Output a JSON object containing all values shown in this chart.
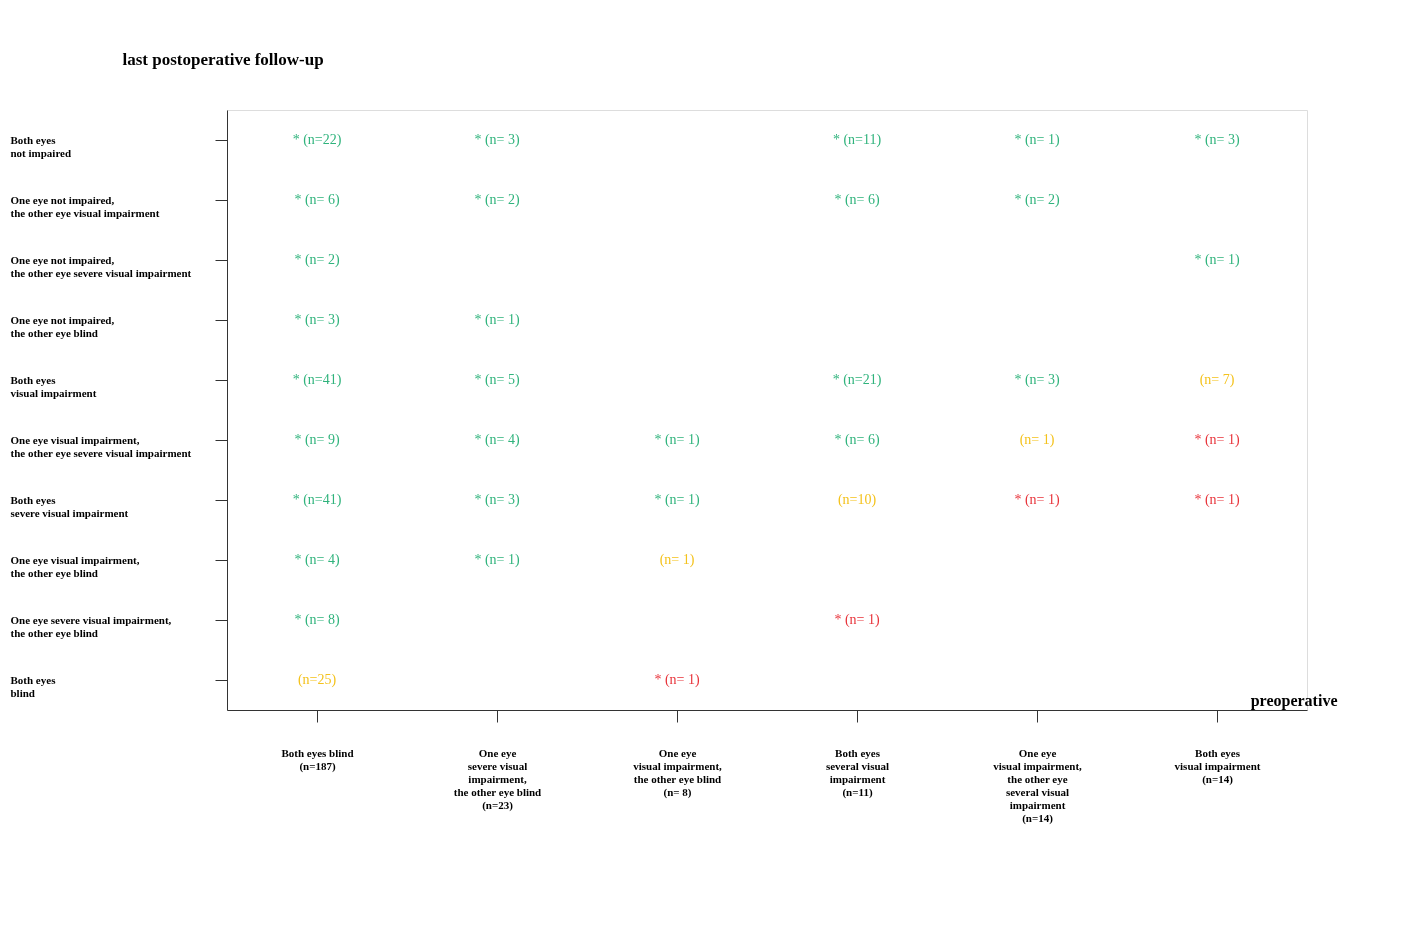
{
  "chart_data": {
    "type": "heatmap",
    "xlabel": "preoperative",
    "ylabel": "last postoperative follow-up",
    "categories": [
      "Both eyes blind\n(n=187)",
      "One eye\nsevere visual\nimpairment,\nthe other eye blind\n(n=23)",
      "One eye\nvisual impairment,\nthe other eye blind\n(n= 8)",
      "Both eyes\nseveral visual\nimpairment\n(n=11)",
      "One eye\nvisual impairment,\nthe other eye\nseveral visual\nimpairment\n(n=14)",
      "Both eyes\nvisual impairment\n(n=14)"
    ],
    "y_categories": [
      "Both eyes\nnot impaired",
      "One eye not impaired,\nthe other eye visual impairment",
      "One eye not impaired,\nthe other eye severe visual impairment",
      "One eye not impaired,\nthe other eye blind",
      "Both eyes\nvisual impairment",
      "One eye visual impairment,\nthe other eye severe visual impairment",
      "Both eyes\nsevere visual impairment",
      "One eye visual impairment,\nthe other eye blind",
      "One eye severe visual impairment,\nthe other eye blind",
      "Both eyes\nblind"
    ],
    "cells": [
      [
        22,
        3,
        null,
        11,
        1,
        3
      ],
      [
        6,
        2,
        null,
        6,
        2,
        null
      ],
      [
        2,
        null,
        null,
        null,
        null,
        1
      ],
      [
        3,
        1,
        null,
        null,
        null,
        null
      ],
      [
        41,
        5,
        null,
        21,
        3,
        7
      ],
      [
        9,
        4,
        1,
        6,
        1,
        1
      ],
      [
        41,
        3,
        1,
        10,
        1,
        1
      ],
      [
        4,
        1,
        1,
        null,
        null,
        null
      ],
      [
        8,
        null,
        null,
        1,
        null,
        null
      ],
      [
        25,
        null,
        1,
        null,
        null,
        null
      ]
    ],
    "cell_labels": [
      [
        "* (n=22)",
        "* (n= 3)",
        null,
        "* (n=11)",
        "* (n= 1)",
        "* (n= 3)"
      ],
      [
        "* (n= 6)",
        "* (n= 2)",
        null,
        "* (n= 6)",
        "* (n= 2)",
        null
      ],
      [
        "* (n= 2)",
        null,
        null,
        null,
        null,
        "* (n= 1)"
      ],
      [
        "* (n= 3)",
        "* (n= 1)",
        null,
        null,
        null,
        null
      ],
      [
        "* (n=41)",
        "* (n= 5)",
        null,
        "* (n=21)",
        "* (n= 3)",
        "(n= 7)"
      ],
      [
        "* (n= 9)",
        "* (n= 4)",
        "* (n= 1)",
        "* (n= 6)",
        "(n= 1)",
        "* (n= 1)"
      ],
      [
        "* (n=41)",
        "* (n= 3)",
        "* (n= 1)",
        "(n=10)",
        "* (n= 1)",
        "* (n= 1)"
      ],
      [
        "* (n= 4)",
        "* (n= 1)",
        "(n= 1)",
        null,
        null,
        null
      ],
      [
        "* (n= 8)",
        null,
        null,
        "* (n= 1)",
        null,
        null
      ],
      [
        "(n=25)",
        null,
        "* (n= 1)",
        null,
        null,
        null
      ]
    ],
    "colors": [
      [
        "#2fb37c",
        "#2fb37c",
        null,
        "#2fb37c",
        "#2fb37c",
        "#2fb37c"
      ],
      [
        "#2fb37c",
        "#2fb37c",
        null,
        "#2fb37c",
        "#2fb37c",
        null
      ],
      [
        "#2fb37c",
        null,
        null,
        null,
        null,
        "#2fb37c"
      ],
      [
        "#2fb37c",
        "#2fb37c",
        null,
        null,
        null,
        null
      ],
      [
        "#2fb37c",
        "#2fb37c",
        null,
        "#2fb37c",
        "#2fb37c",
        "#f4c21c"
      ],
      [
        "#2fb37c",
        "#2fb37c",
        "#2fb37c",
        "#2fb37c",
        "#f4c21c",
        "#e8333a"
      ],
      [
        "#2fb37c",
        "#2fb37c",
        "#2fb37c",
        "#f4c21c",
        "#e8333a",
        "#e8333a"
      ],
      [
        "#2fb37c",
        "#2fb37c",
        "#f4c21c",
        null,
        null,
        null
      ],
      [
        "#2fb37c",
        null,
        null,
        "#e8333a",
        null,
        null
      ],
      [
        "#f4c21c",
        null,
        "#e8333a",
        null,
        null,
        null
      ]
    ],
    "grid": false
  }
}
